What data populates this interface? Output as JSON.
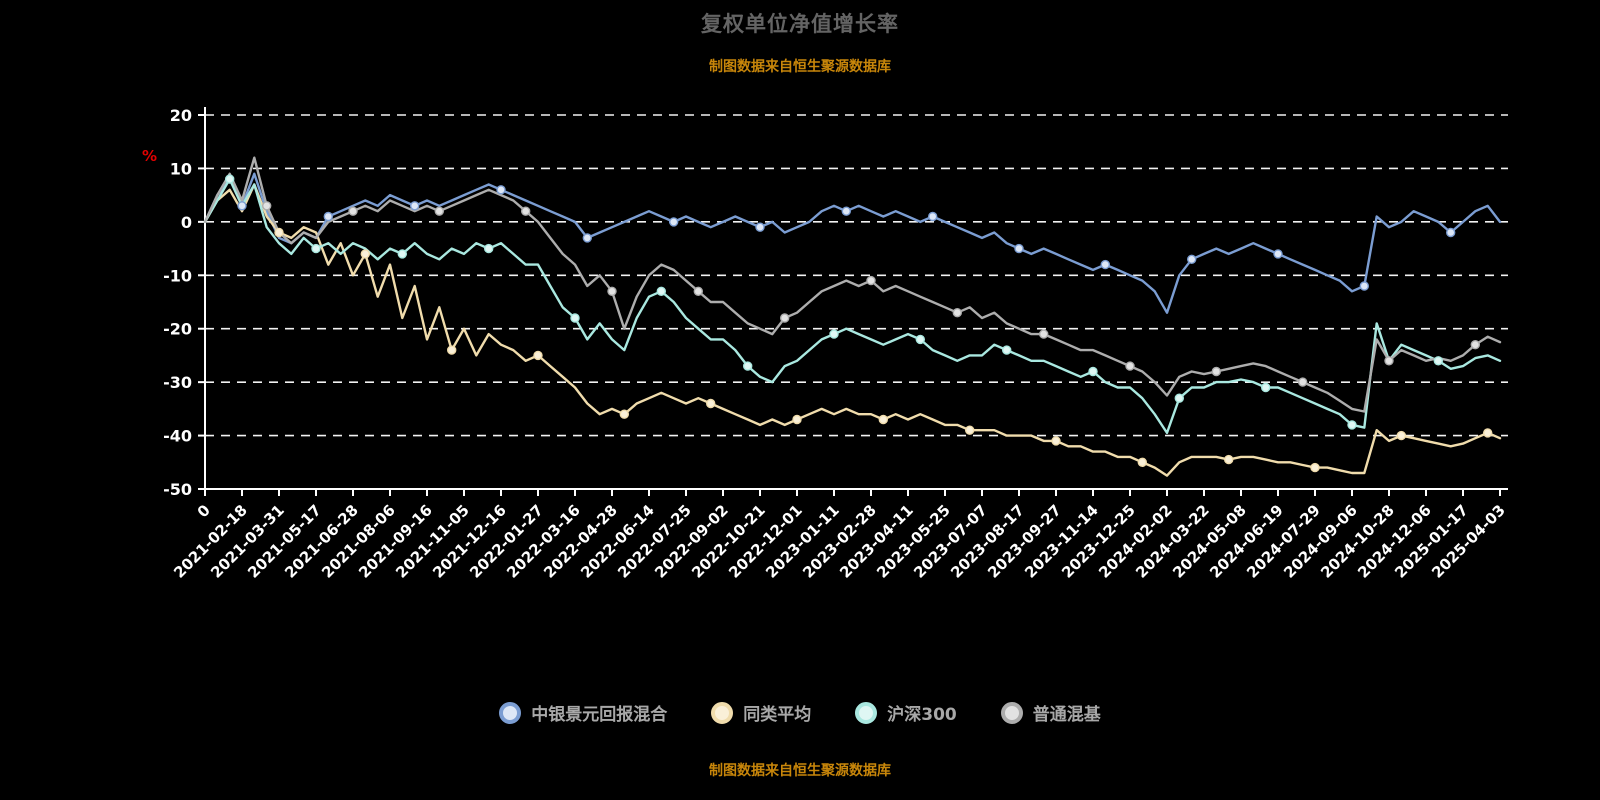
{
  "source_note": "制图数据来自恒生聚源数据库",
  "colors": {
    "background": "#000000",
    "title_text": "#646464",
    "source_note_text": "#C8860A",
    "axis_and_grid": "#FFFFFF",
    "y_unit_label": "#E00000",
    "legend_text": "#A8A8A8"
  },
  "chart_data": {
    "type": "line",
    "title": "复权单位净值增长率",
    "xlabel": "",
    "ylabel": "%",
    "ylim": [
      -50,
      20
    ],
    "yticks": [
      20,
      10,
      0,
      -10,
      -20,
      -30,
      -40,
      -50
    ],
    "grid": "horizontal-dashed",
    "legend_position": "bottom",
    "x_tick_labels": [
      "0",
      "2021-02-18",
      "2021-03-31",
      "2021-05-17",
      "2021-06-28",
      "2021-08-06",
      "2021-09-16",
      "2021-11-05",
      "2021-12-16",
      "2022-01-27",
      "2022-03-16",
      "2022-04-28",
      "2022-06-14",
      "2022-07-25",
      "2022-09-02",
      "2022-10-21",
      "2022-12-01",
      "2023-01-11",
      "2023-02-28",
      "2023-04-11",
      "2023-05-25",
      "2023-07-07",
      "2023-08-17",
      "2023-09-27",
      "2023-11-14",
      "2023-12-25",
      "2024-02-02",
      "2024-03-22",
      "2024-05-08",
      "2024-06-19",
      "2024-07-29",
      "2024-09-06",
      "2024-10-28",
      "2024-12-06",
      "2025-01-17",
      "2025-04-03"
    ],
    "points_per_label_interval": 3,
    "series": [
      {
        "name": "中银景元回报混合",
        "color": "#7B9DD2",
        "marker_fill": "#DDE7F6",
        "values": [
          0,
          5,
          8,
          3,
          9,
          2,
          -3,
          -4,
          -2,
          -3,
          1,
          2,
          3,
          4,
          3,
          5,
          4,
          3,
          4,
          3,
          4,
          5,
          6,
          7,
          6,
          5,
          4,
          3,
          2,
          1,
          0,
          -3,
          -2,
          -1,
          0,
          1,
          2,
          1,
          0,
          1,
          0,
          -1,
          0,
          1,
          0,
          -1,
          0,
          -2,
          -1,
          0,
          2,
          3,
          2,
          3,
          2,
          1,
          2,
          1,
          0,
          1,
          0,
          -1,
          -2,
          -3,
          -2,
          -4,
          -5,
          -6,
          -5,
          -6,
          -7,
          -8,
          -9,
          -8,
          -9,
          -10,
          -11,
          -13,
          -17,
          -10,
          -7,
          -6,
          -5,
          -6,
          -5,
          -4,
          -5,
          -6,
          -7,
          -8,
          -9,
          -10,
          -11,
          -13,
          -12,
          1,
          -1,
          0,
          2,
          1,
          0,
          -2,
          0,
          2,
          3,
          0
        ]
      },
      {
        "name": "同类平均",
        "color": "#F0DCAC",
        "marker_fill": "#FAF0D8",
        "values": [
          0,
          4,
          6,
          2,
          7,
          1,
          -2,
          -3,
          -1,
          -2,
          -8,
          -4,
          -10,
          -6,
          -14,
          -8,
          -18,
          -12,
          -22,
          -16,
          -24,
          -20,
          -25,
          -21,
          -23,
          -24,
          -26,
          -25,
          -27,
          -29,
          -31,
          -34,
          -36,
          -35,
          -36,
          -34,
          -33,
          -32,
          -33,
          -34,
          -33,
          -34,
          -35,
          -36,
          -37,
          -38,
          -37,
          -38,
          -37,
          -36,
          -35,
          -36,
          -35,
          -36,
          -36,
          -37,
          -36,
          -37,
          -36,
          -37,
          -38,
          -38,
          -39,
          -39,
          -39,
          -40,
          -40,
          -40,
          -41,
          -41,
          -42,
          -42,
          -43,
          -43,
          -44,
          -44,
          -45,
          -46,
          -47.5,
          -45,
          -44,
          -44,
          -44,
          -44.5,
          -44,
          -44,
          -44.5,
          -45,
          -45,
          -45.5,
          -46,
          -46,
          -46.5,
          -47,
          -47,
          -39,
          -41,
          -40,
          -40.5,
          -41,
          -41.5,
          -42,
          -41.5,
          -40.5,
          -39.5,
          -40.5
        ]
      },
      {
        "name": "沪深300",
        "color": "#A9E8E0",
        "marker_fill": "#DFF7F4",
        "values": [
          0,
          4,
          8,
          3,
          7,
          -1,
          -4,
          -6,
          -3,
          -5,
          -4,
          -6,
          -4,
          -5,
          -7,
          -5,
          -6,
          -4,
          -6,
          -7,
          -5,
          -6,
          -4,
          -5,
          -4,
          -6,
          -8,
          -8,
          -12,
          -16,
          -18,
          -22,
          -19,
          -22,
          -24,
          -18,
          -14,
          -13,
          -15,
          -18,
          -20,
          -22,
          -22,
          -24,
          -27,
          -29,
          -30,
          -27,
          -26,
          -24,
          -22,
          -21,
          -20,
          -21,
          -22,
          -23,
          -22,
          -21,
          -22,
          -24,
          -25,
          -26,
          -25,
          -25,
          -23,
          -24,
          -25,
          -26,
          -26,
          -27,
          -28,
          -29,
          -28,
          -30,
          -31,
          -31,
          -33,
          -36,
          -39.5,
          -33,
          -31,
          -31,
          -30,
          -30,
          -29.5,
          -30,
          -31,
          -31,
          -32,
          -33,
          -34,
          -35,
          -36,
          -38,
          -38.5,
          -19,
          -26,
          -23,
          -24,
          -25,
          -26,
          -27.5,
          -27,
          -25.5,
          -25,
          -26
        ]
      },
      {
        "name": "普通混基",
        "color": "#ADADAD",
        "marker_fill": "#E2E2E2",
        "values": [
          0,
          5,
          9,
          4,
          12,
          3,
          -2,
          -4,
          -2,
          -3,
          0,
          1,
          2,
          3,
          2,
          4,
          3,
          2,
          3,
          2,
          3,
          4,
          5,
          6,
          5,
          4,
          2,
          0,
          -3,
          -6,
          -8,
          -12,
          -10,
          -13,
          -20,
          -14,
          -10,
          -8,
          -9,
          -11,
          -13,
          -15,
          -15,
          -17,
          -19,
          -20,
          -21,
          -18,
          -17,
          -15,
          -13,
          -12,
          -11,
          -12,
          -11,
          -13,
          -12,
          -13,
          -14,
          -15,
          -16,
          -17,
          -16,
          -18,
          -17,
          -19,
          -20,
          -21,
          -21,
          -22,
          -23,
          -24,
          -24,
          -25,
          -26,
          -27,
          -28,
          -30,
          -32.5,
          -29,
          -28,
          -28.5,
          -28,
          -27.5,
          -27,
          -26.5,
          -27,
          -28,
          -29,
          -30,
          -31,
          -32,
          -33.5,
          -35,
          -35.5,
          -22,
          -26,
          -24,
          -25,
          -26,
          -25.5,
          -26,
          -25,
          -23,
          -21.5,
          -22.5
        ]
      }
    ]
  }
}
